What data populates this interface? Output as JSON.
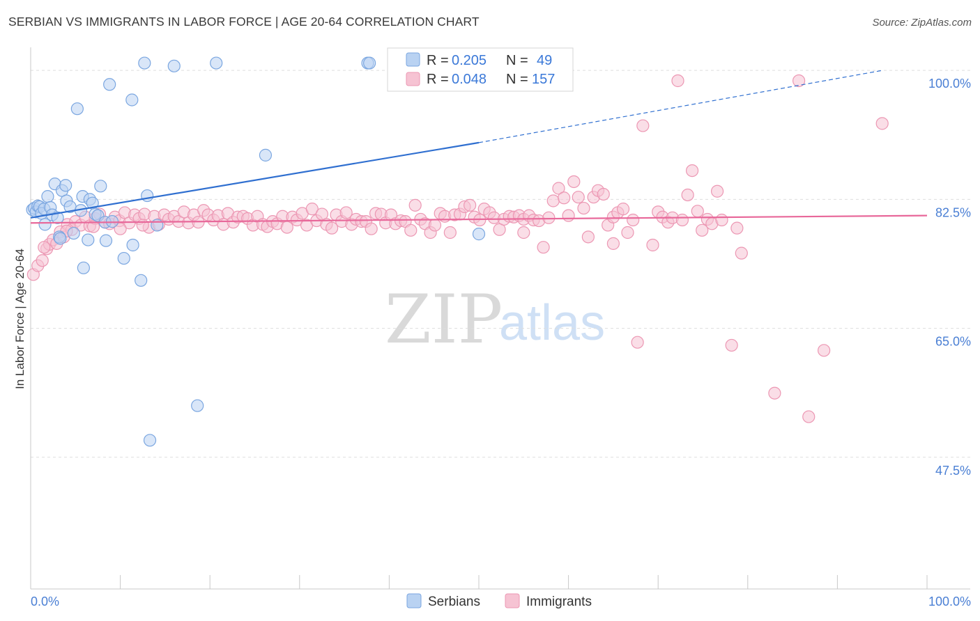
{
  "title": "SERBIAN VS IMMIGRANTS IN LABOR FORCE | AGE 20-64 CORRELATION CHART",
  "source": "Source: ZipAtlas.com",
  "watermark": {
    "zip": "ZIP",
    "atlas": "atlas"
  },
  "legend": {
    "r_label": "R =",
    "n_label": "N =",
    "serbians": {
      "r": "0.205",
      "n": "49"
    },
    "immigrants": {
      "r": "0.048",
      "n": "157"
    }
  },
  "bottom_legend": {
    "serbians": "Serbians",
    "immigrants": "Immigrants"
  },
  "colors": {
    "serbians_fill": "#b9d2f2",
    "serbians_stroke": "#7aa6e0",
    "serbians_line": "#2f6fd0",
    "immigrants_fill": "#f6c3d3",
    "immigrants_stroke": "#ec97b3",
    "immigrants_line": "#e8689a",
    "tick": "#4a7fd4",
    "grid": "#dddddd"
  },
  "chart_data": {
    "type": "scatter",
    "title": "SERBIAN VS IMMIGRANTS IN LABOR FORCE | AGE 20-64 CORRELATION CHART",
    "xlabel": "",
    "ylabel": "In Labor Force | Age 20-64",
    "xlim": [
      0,
      100
    ],
    "ylim": [
      30,
      102
    ],
    "x_tick_labels": [
      "0.0%",
      "100.0%"
    ],
    "y_ticks": [
      47.5,
      65.0,
      82.5,
      100.0
    ],
    "y_tick_labels": [
      "47.5%",
      "65.0%",
      "82.5%",
      "100.0%"
    ],
    "series": [
      {
        "name": "Serbians",
        "r": 0.205,
        "n": 49,
        "trend": {
          "x0": 0,
          "y0": 80.0,
          "x1": 50,
          "y1": 90.2,
          "dash_to_x": 95,
          "dash_to_y": 100.0
        },
        "points": [
          [
            0.2,
            81.1
          ],
          [
            0.4,
            81.3
          ],
          [
            0.6,
            80.8
          ],
          [
            0.8,
            81.6
          ],
          [
            1.0,
            81.5
          ],
          [
            1.2,
            80.6
          ],
          [
            1.5,
            81.2
          ],
          [
            1.6,
            79.1
          ],
          [
            1.9,
            82.9
          ],
          [
            2.2,
            81.4
          ],
          [
            2.4,
            80.4
          ],
          [
            2.7,
            84.6
          ],
          [
            3.0,
            80.0
          ],
          [
            3.2,
            77.4
          ],
          [
            3.5,
            83.7
          ],
          [
            3.9,
            84.4
          ],
          [
            4.0,
            82.3
          ],
          [
            4.4,
            81.5
          ],
          [
            4.8,
            77.9
          ],
          [
            5.6,
            81.0
          ],
          [
            5.8,
            82.9
          ],
          [
            5.9,
            73.2
          ],
          [
            6.4,
            77.0
          ],
          [
            6.6,
            82.5
          ],
          [
            6.9,
            82.0
          ],
          [
            7.2,
            80.5
          ],
          [
            7.5,
            80.3
          ],
          [
            7.8,
            84.3
          ],
          [
            8.3,
            79.4
          ],
          [
            8.4,
            76.9
          ],
          [
            8.8,
            98.1
          ],
          [
            9.1,
            79.5
          ],
          [
            10.4,
            74.5
          ],
          [
            11.3,
            96.0
          ],
          [
            11.4,
            76.3
          ],
          [
            12.3,
            71.5
          ],
          [
            12.7,
            101.0
          ],
          [
            13.0,
            83.0
          ],
          [
            13.3,
            49.8
          ],
          [
            14.1,
            79.0
          ],
          [
            16.0,
            100.6
          ],
          [
            18.6,
            54.5
          ],
          [
            20.7,
            101.0
          ],
          [
            26.2,
            88.5
          ],
          [
            37.6,
            101.0
          ],
          [
            37.8,
            101.0
          ],
          [
            5.2,
            94.8
          ],
          [
            3.3,
            77.2
          ],
          [
            50.0,
            77.8
          ]
        ]
      },
      {
        "name": "Immigrants",
        "r": 0.048,
        "n": 157,
        "trend": {
          "x0": 0,
          "y0": 79.3,
          "x1": 100,
          "y1": 80.3
        },
        "points": [
          [
            0.3,
            72.3
          ],
          [
            0.8,
            73.5
          ],
          [
            1.3,
            74.2
          ],
          [
            1.8,
            75.8
          ],
          [
            2.1,
            76.4
          ],
          [
            2.5,
            77.0
          ],
          [
            2.9,
            76.5
          ],
          [
            3.3,
            78.1
          ],
          [
            3.7,
            77.4
          ],
          [
            4.1,
            79.1
          ],
          [
            4.6,
            78.4
          ],
          [
            5.0,
            79.5
          ],
          [
            5.6,
            79.0
          ],
          [
            6.1,
            80.1
          ],
          [
            6.6,
            78.9
          ],
          [
            7.2,
            79.9
          ],
          [
            7.7,
            80.5
          ],
          [
            8.3,
            79.4
          ],
          [
            8.8,
            79.2
          ],
          [
            9.4,
            80.1
          ],
          [
            9.9,
            79.6
          ],
          [
            10.5,
            80.7
          ],
          [
            11.0,
            79.3
          ],
          [
            11.6,
            80.4
          ],
          [
            12.1,
            79.9
          ],
          [
            12.7,
            80.5
          ],
          [
            13.2,
            78.7
          ],
          [
            13.8,
            80.2
          ],
          [
            14.3,
            79.1
          ],
          [
            14.9,
            80.4
          ],
          [
            15.4,
            79.8
          ],
          [
            16.0,
            80.2
          ],
          [
            16.5,
            79.5
          ],
          [
            17.1,
            80.8
          ],
          [
            17.6,
            79.3
          ],
          [
            18.2,
            80.4
          ],
          [
            18.7,
            79.4
          ],
          [
            19.3,
            81.0
          ],
          [
            19.8,
            80.4
          ],
          [
            20.4,
            79.7
          ],
          [
            20.9,
            80.3
          ],
          [
            21.5,
            79.1
          ],
          [
            22.0,
            80.6
          ],
          [
            22.6,
            79.4
          ],
          [
            23.1,
            80.1
          ],
          [
            23.7,
            80.2
          ],
          [
            24.2,
            79.9
          ],
          [
            24.8,
            79.0
          ],
          [
            25.3,
            80.2
          ],
          [
            25.9,
            79.1
          ],
          [
            26.4,
            78.8
          ],
          [
            27.0,
            79.5
          ],
          [
            27.5,
            79.2
          ],
          [
            28.1,
            80.2
          ],
          [
            28.6,
            78.7
          ],
          [
            29.2,
            80.1
          ],
          [
            29.7,
            79.7
          ],
          [
            30.3,
            80.6
          ],
          [
            30.8,
            79.0
          ],
          [
            31.4,
            81.2
          ],
          [
            31.9,
            79.6
          ],
          [
            32.5,
            80.5
          ],
          [
            33.0,
            79.1
          ],
          [
            33.6,
            78.6
          ],
          [
            34.1,
            80.4
          ],
          [
            34.7,
            79.5
          ],
          [
            35.2,
            80.7
          ],
          [
            35.8,
            79.1
          ],
          [
            36.3,
            79.8
          ],
          [
            36.9,
            79.5
          ],
          [
            37.4,
            79.5
          ],
          [
            38.0,
            78.5
          ],
          [
            38.5,
            80.6
          ],
          [
            39.1,
            80.5
          ],
          [
            39.6,
            79.3
          ],
          [
            40.2,
            80.4
          ],
          [
            40.7,
            79.2
          ],
          [
            41.3,
            79.6
          ],
          [
            41.8,
            79.5
          ],
          [
            42.4,
            78.3
          ],
          [
            42.9,
            81.7
          ],
          [
            43.5,
            79.8
          ],
          [
            44.0,
            79.2
          ],
          [
            44.6,
            78.0
          ],
          [
            45.1,
            79.0
          ],
          [
            45.7,
            80.6
          ],
          [
            46.2,
            80.2
          ],
          [
            46.8,
            78.0
          ],
          [
            47.3,
            80.4
          ],
          [
            47.9,
            80.5
          ],
          [
            48.4,
            81.5
          ],
          [
            49.0,
            81.7
          ],
          [
            49.5,
            80.1
          ],
          [
            50.1,
            79.7
          ],
          [
            50.6,
            81.2
          ],
          [
            51.2,
            80.7
          ],
          [
            51.7,
            80.0
          ],
          [
            52.3,
            78.4
          ],
          [
            52.8,
            79.8
          ],
          [
            53.4,
            80.2
          ],
          [
            53.9,
            80.1
          ],
          [
            54.5,
            80.3
          ],
          [
            55.0,
            79.8
          ],
          [
            55.6,
            80.3
          ],
          [
            56.1,
            79.7
          ],
          [
            56.7,
            79.6
          ],
          [
            57.2,
            76.0
          ],
          [
            57.8,
            80.0
          ],
          [
            58.3,
            82.3
          ],
          [
            58.9,
            84.0
          ],
          [
            59.5,
            82.7
          ],
          [
            60.0,
            80.3
          ],
          [
            60.6,
            84.9
          ],
          [
            61.1,
            82.8
          ],
          [
            61.7,
            81.3
          ],
          [
            62.2,
            77.4
          ],
          [
            62.8,
            82.8
          ],
          [
            63.3,
            83.7
          ],
          [
            63.9,
            83.2
          ],
          [
            64.4,
            79.0
          ],
          [
            65.0,
            80.1
          ],
          [
            65.5,
            80.7
          ],
          [
            66.1,
            81.2
          ],
          [
            66.6,
            78.0
          ],
          [
            67.2,
            79.7
          ],
          [
            67.7,
            63.1
          ],
          [
            68.3,
            92.5
          ],
          [
            69.4,
            76.3
          ],
          [
            70.0,
            80.8
          ],
          [
            70.5,
            80.1
          ],
          [
            71.1,
            79.4
          ],
          [
            71.6,
            80.0
          ],
          [
            72.2,
            98.6
          ],
          [
            72.7,
            79.7
          ],
          [
            73.3,
            83.1
          ],
          [
            73.8,
            86.4
          ],
          [
            74.4,
            80.9
          ],
          [
            74.9,
            78.3
          ],
          [
            75.5,
            79.8
          ],
          [
            76.0,
            79.2
          ],
          [
            76.6,
            83.6
          ],
          [
            77.1,
            79.7
          ],
          [
            78.2,
            62.7
          ],
          [
            78.8,
            78.6
          ],
          [
            79.3,
            75.2
          ],
          [
            83.0,
            56.2
          ],
          [
            85.7,
            98.6
          ],
          [
            86.8,
            53.0
          ],
          [
            88.5,
            62.0
          ],
          [
            95.0,
            92.8
          ],
          [
            1.5,
            76.0
          ],
          [
            4.0,
            78.2
          ],
          [
            7.0,
            78.8
          ],
          [
            10.0,
            78.5
          ],
          [
            12.5,
            79.0
          ],
          [
            55.0,
            78.0
          ],
          [
            65.0,
            76.5
          ]
        ]
      }
    ]
  }
}
